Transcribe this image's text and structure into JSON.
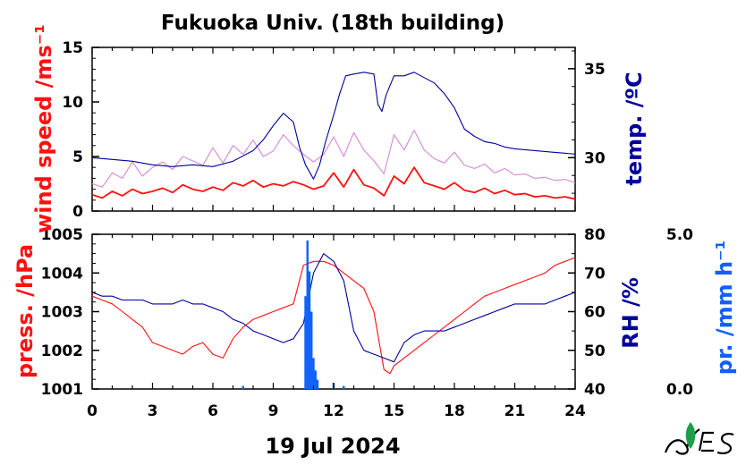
{
  "title": "Fukuoka Univ. (18th building)",
  "date_label": "19 Jul 2024",
  "colors": {
    "wind_mean": "#ff1010",
    "wind_gust": "#d890d8",
    "temperature": "#00009c",
    "pressure": "#ff1010",
    "humidity": "#00009c",
    "precip": "#1060ff",
    "axis": "#000000"
  },
  "chart_data": [
    {
      "type": "line",
      "panel": "top",
      "x_label": "",
      "x_ticks": [
        "0",
        "3",
        "6",
        "9",
        "12",
        "15",
        "18",
        "21",
        "24"
      ],
      "x_range": [
        0,
        24
      ],
      "left_axis": {
        "label": "wind speed /ms⁻¹",
        "range": [
          0,
          15
        ],
        "ticks": [
          "0",
          "5",
          "10",
          "15"
        ]
      },
      "right_axis": {
        "label": "temp. /ºC",
        "range": [
          27.0,
          36.2
        ],
        "ticks": [
          "30",
          "35"
        ]
      },
      "series": [
        {
          "name": "wind speed (mean)",
          "axis": "left",
          "x": [
            0,
            0.5,
            1,
            1.5,
            2,
            2.5,
            3,
            3.5,
            4,
            4.5,
            5,
            5.5,
            6,
            6.5,
            7,
            7.5,
            8,
            8.5,
            9,
            9.5,
            10,
            10.5,
            11,
            11.5,
            12,
            12.5,
            13,
            13.5,
            14,
            14.5,
            15,
            15.5,
            16,
            16.5,
            17,
            17.5,
            18,
            18.5,
            19,
            19.5,
            20,
            20.5,
            21,
            21.5,
            22,
            22.5,
            23,
            23.5,
            24
          ],
          "y": [
            1.5,
            1.2,
            1.8,
            1.4,
            2.0,
            1.6,
            1.8,
            2.1,
            1.7,
            2.4,
            2.0,
            1.8,
            2.2,
            1.9,
            2.6,
            2.3,
            2.8,
            2.2,
            2.5,
            2.3,
            2.7,
            2.4,
            2.0,
            2.3,
            3.5,
            2.2,
            3.8,
            2.4,
            2.1,
            1.4,
            3.2,
            2.5,
            4.0,
            2.6,
            2.3,
            2.0,
            2.6,
            1.9,
            1.7,
            2.1,
            1.6,
            1.9,
            1.5,
            1.6,
            1.3,
            1.4,
            1.2,
            1.3,
            1.1
          ]
        },
        {
          "name": "wind speed (gust)",
          "axis": "left",
          "x": [
            0,
            0.5,
            1,
            1.5,
            2,
            2.5,
            3,
            3.5,
            4,
            4.5,
            5,
            5.5,
            6,
            6.5,
            7,
            7.5,
            8,
            8.5,
            9,
            9.5,
            10,
            10.5,
            11,
            11.5,
            12,
            12.5,
            13,
            13.5,
            14,
            14.5,
            15,
            15.5,
            16,
            16.5,
            17,
            17.5,
            18,
            18.5,
            19,
            19.5,
            20,
            20.5,
            21,
            21.5,
            22,
            22.5,
            23,
            23.5,
            24
          ],
          "y": [
            2.5,
            2.2,
            3.5,
            3.0,
            4.5,
            3.2,
            4.0,
            4.5,
            3.8,
            5.0,
            4.6,
            4.2,
            5.8,
            4.4,
            6.0,
            5.2,
            6.5,
            5.0,
            5.5,
            7.0,
            6.0,
            5.2,
            4.5,
            5.2,
            6.8,
            5.0,
            7.2,
            5.6,
            4.6,
            3.4,
            7.0,
            5.6,
            7.4,
            5.6,
            4.8,
            4.4,
            5.4,
            4.2,
            3.9,
            4.3,
            3.5,
            3.9,
            3.3,
            3.4,
            3.0,
            3.1,
            2.8,
            2.9,
            2.6
          ]
        },
        {
          "name": "temperature",
          "axis": "right",
          "x": [
            0,
            1,
            2,
            3,
            4,
            5,
            6,
            7,
            8,
            8.5,
            9,
            9.5,
            10,
            10.3,
            10.6,
            11,
            11.3,
            11.6,
            12,
            12.3,
            12.6,
            13,
            13.5,
            14,
            14.2,
            14.4,
            14.6,
            15,
            15.5,
            16,
            16.5,
            17,
            17.5,
            18,
            18.5,
            19,
            19.5,
            20,
            20.5,
            21,
            22,
            23,
            24
          ],
          "y": [
            30.0,
            29.9,
            29.8,
            29.6,
            29.5,
            29.6,
            29.5,
            29.8,
            30.4,
            31.0,
            31.8,
            32.5,
            32.0,
            30.6,
            29.6,
            28.8,
            29.6,
            30.9,
            32.4,
            33.6,
            34.6,
            34.7,
            34.8,
            34.7,
            33.0,
            32.6,
            33.5,
            34.6,
            34.6,
            34.8,
            34.5,
            34.2,
            33.6,
            32.8,
            31.6,
            31.2,
            30.9,
            30.8,
            30.6,
            30.5,
            30.4,
            30.3,
            30.2
          ]
        }
      ]
    },
    {
      "type": "line",
      "panel": "bottom",
      "x_label": "19 Jul 2024",
      "x_ticks": [
        "0",
        "3",
        "6",
        "9",
        "12",
        "15",
        "18",
        "21",
        "24"
      ],
      "x_range": [
        0,
        24
      ],
      "left_axis": {
        "label": "press. /hPa",
        "range": [
          1001,
          1005
        ],
        "ticks": [
          "1001",
          "1002",
          "1003",
          "1004",
          "1005"
        ]
      },
      "right_axis": {
        "label": "RH /%",
        "range": [
          40,
          80
        ],
        "ticks": [
          "40",
          "50",
          "60",
          "70",
          "80"
        ]
      },
      "precip_axis": {
        "label": "pr. /mm h⁻¹",
        "range": [
          0.0,
          5.0
        ],
        "ticks": [
          "0.0",
          "5.0"
        ]
      },
      "series": [
        {
          "name": "pressure",
          "axis": "left",
          "x": [
            0,
            0.5,
            1,
            1.5,
            2,
            2.5,
            3,
            3.5,
            4,
            4.5,
            5,
            5.5,
            6,
            6.5,
            7,
            7.5,
            8,
            8.5,
            9,
            9.5,
            10,
            10.5,
            11,
            11.5,
            12,
            12.5,
            13,
            13.5,
            14,
            14.2,
            14.5,
            14.8,
            15,
            15.5,
            16,
            16.5,
            17,
            17.5,
            18,
            18.5,
            19,
            19.5,
            20,
            20.5,
            21,
            21.5,
            22,
            22.5,
            23,
            23.5,
            24
          ],
          "y": [
            1003.4,
            1003.3,
            1003.2,
            1003.0,
            1002.8,
            1002.6,
            1002.2,
            1002.1,
            1002.0,
            1001.9,
            1002.1,
            1002.2,
            1001.9,
            1001.8,
            1002.3,
            1002.6,
            1002.8,
            1002.9,
            1003.0,
            1003.1,
            1003.2,
            1004.2,
            1004.3,
            1004.3,
            1004.2,
            1004.0,
            1003.8,
            1003.6,
            1003.0,
            1002.4,
            1001.5,
            1001.4,
            1001.6,
            1001.8,
            1002.0,
            1002.2,
            1002.4,
            1002.6,
            1002.8,
            1003.0,
            1003.2,
            1003.4,
            1003.5,
            1003.6,
            1003.7,
            1003.8,
            1003.9,
            1004.0,
            1004.2,
            1004.3,
            1004.4
          ]
        },
        {
          "name": "relative humidity",
          "axis": "right",
          "x": [
            0,
            0.5,
            1,
            1.5,
            2,
            2.5,
            3,
            3.5,
            4,
            4.5,
            5,
            5.5,
            6,
            6.5,
            7,
            7.5,
            8,
            8.5,
            9,
            9.5,
            10,
            10.5,
            11,
            11.5,
            12,
            12.5,
            13,
            13.5,
            14,
            14.5,
            15,
            15.5,
            16,
            16.5,
            17,
            17.5,
            18,
            18.5,
            19,
            19.5,
            20,
            20.5,
            21,
            21.5,
            22,
            22.5,
            23,
            23.5,
            24
          ],
          "y": [
            65,
            64,
            64,
            63,
            63,
            63,
            62,
            62,
            62,
            63,
            62,
            62,
            61,
            60,
            58,
            57,
            55,
            54,
            53,
            52,
            53,
            57,
            70,
            75,
            73,
            68,
            55,
            50,
            49,
            48,
            47,
            52,
            54,
            55,
            55,
            55,
            56,
            57,
            58,
            59,
            60,
            61,
            62,
            62,
            62,
            62,
            63,
            64,
            65
          ]
        },
        {
          "name": "precipitation",
          "axis": "precip",
          "x": [
            7.5,
            10.6,
            10.7,
            10.8,
            10.9,
            11.0,
            11.1,
            11.2,
            12.0,
            12.5
          ],
          "y": [
            0.1,
            3.0,
            4.8,
            3.8,
            2.5,
            1.0,
            0.6,
            0.3,
            0.2,
            0.1
          ]
        }
      ]
    }
  ]
}
